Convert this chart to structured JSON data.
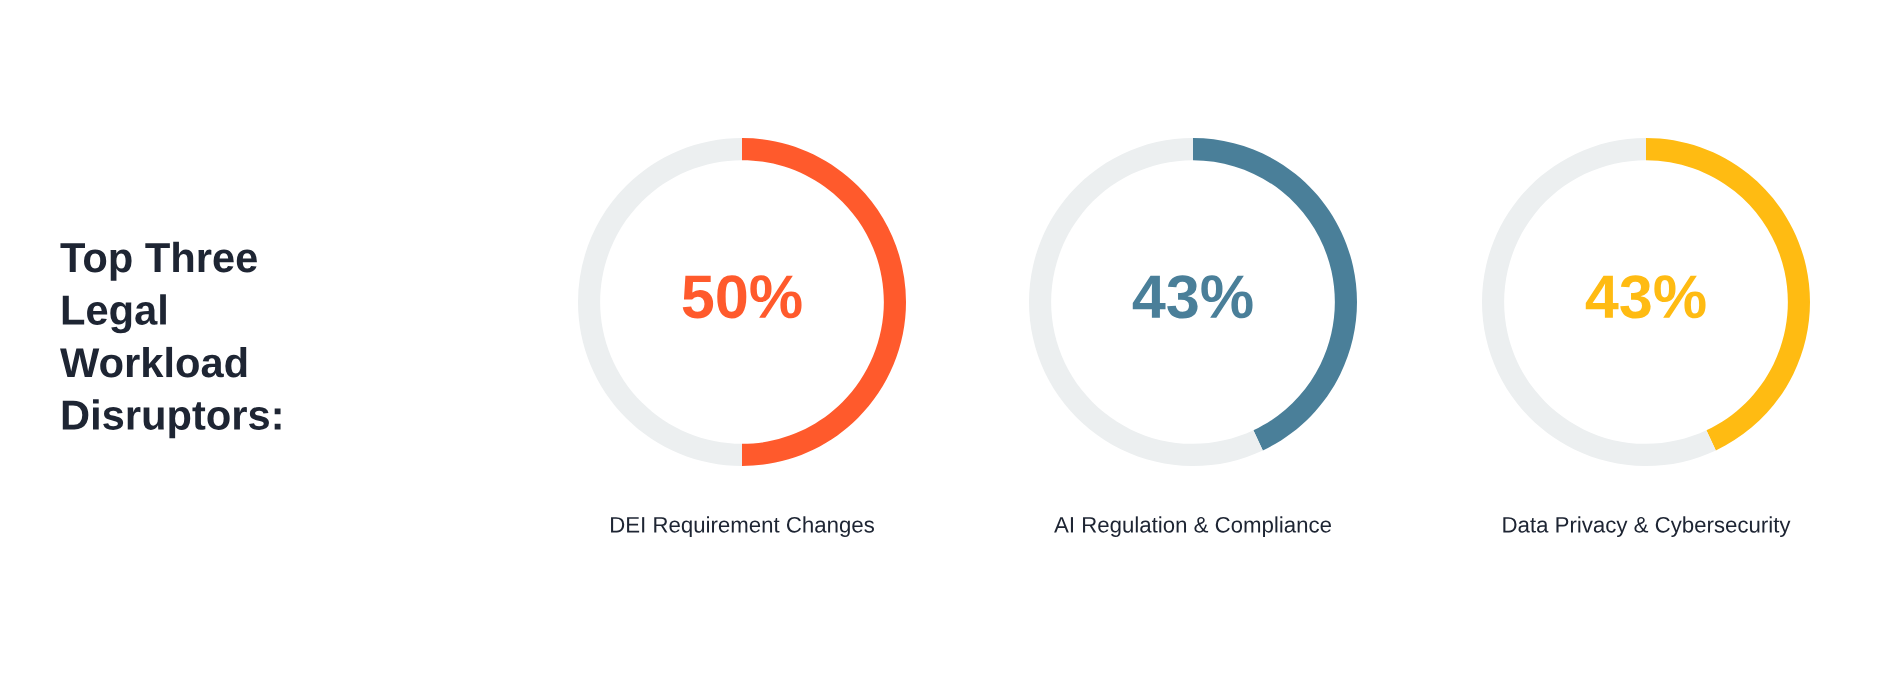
{
  "chart_data": [
    {
      "type": "other",
      "title": "Top Three\nLegal\nWorkload\nDisruptors:"
    },
    {
      "type": "donut",
      "xlabel": "DEI Requirement Changes",
      "categories": [
        null,
        null
      ],
      "values": [
        50,
        50
      ],
      "colors": [
        "#ff5a2c",
        "#eceff0"
      ],
      "value_labels": [
        "50%",
        null
      ]
    },
    {
      "type": "donut",
      "xlabel": "AI Regulation & Compliance",
      "categories": [
        null,
        null
      ],
      "values": [
        43,
        57
      ],
      "colors": [
        "#4a7f99",
        "#eceff0"
      ],
      "value_labels": [
        "43%",
        null
      ]
    },
    {
      "type": "donut",
      "xlabel": "Data Privacy & Cybersecurity",
      "categories": [
        null,
        null
      ],
      "values": [
        43,
        57
      ],
      "colors": [
        "#ffbb12",
        "#eceff0"
      ],
      "value_labels": [
        "43%",
        null
      ]
    }
  ]
}
